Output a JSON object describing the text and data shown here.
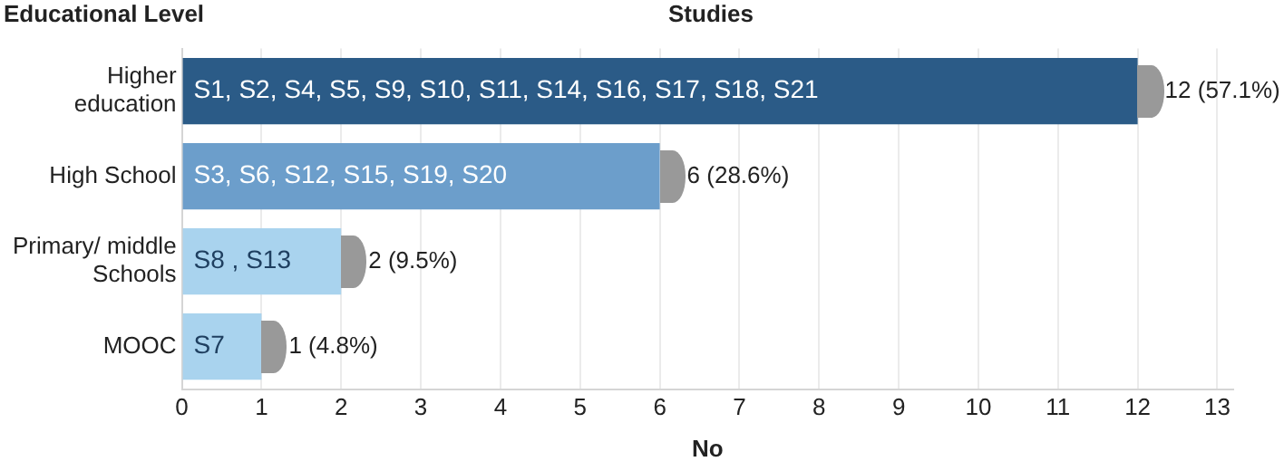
{
  "chart_data": {
    "type": "bar",
    "orientation": "horizontal",
    "title": "Studies",
    "ylabel": "Educational Level",
    "xlabel": "No",
    "categories": [
      "Higher education",
      "High School",
      "Primary/ middle Schools",
      "MOOC"
    ],
    "values": [
      12,
      6,
      2,
      1
    ],
    "colors": [
      "#2b5b87",
      "#6c9ecb",
      "#a9d3ee",
      "#a9d3ee"
    ],
    "value_labels": [
      "12 (57.1%)",
      "6 (28.6%)",
      "2 (9.5%)",
      "1 (4.8%)"
    ],
    "xlim": [
      0,
      13.2
    ],
    "xticks": [
      0,
      1,
      2,
      3,
      4,
      5,
      6,
      7,
      8,
      9,
      10,
      11,
      12,
      13
    ],
    "grid": "x",
    "annotations": [
      {
        "text": "S1, S2, S4, S5, S9, S10, S11, S14, S16, S17, S18, S21",
        "y": "Higher education"
      },
      {
        "text": "S3, S6, S12, S15, S19, S20",
        "y": "High School"
      },
      {
        "text": "S8 , S13",
        "y": "Primary/ middle Schools"
      },
      {
        "text": "S7",
        "y": "MOOC"
      }
    ]
  }
}
